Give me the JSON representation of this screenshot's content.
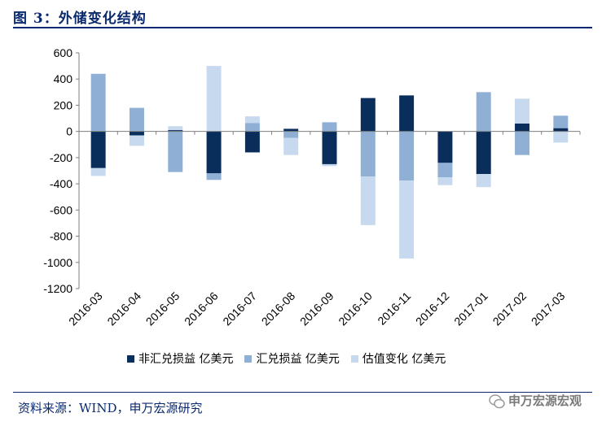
{
  "title": "图 3：外储变化结构",
  "source": "资料来源：WIND，申万宏源研究",
  "brand": "申万宏源宏观",
  "colors": {
    "series1": "#0a2e5c",
    "series2": "#8fb0d4",
    "series3": "#c6d9ee",
    "title": "#0b2a6e"
  },
  "chart_data": {
    "type": "bar",
    "stacked": true,
    "categories": [
      "2016-03",
      "2016-04",
      "2016-05",
      "2016-06",
      "2016-07",
      "2016-08",
      "2016-09",
      "2016-10",
      "2016-11",
      "2016-12",
      "2017-01",
      "2017-02",
      "2017-03"
    ],
    "series": [
      {
        "name": "非汇兑损益 亿美元",
        "values": [
          -280,
          -30,
          10,
          -320,
          -160,
          20,
          -250,
          255,
          275,
          -240,
          -325,
          60,
          25
        ]
      },
      {
        "name": "汇兑损益 亿美元",
        "values": [
          440,
          180,
          -310,
          -50,
          65,
          -50,
          70,
          -345,
          -375,
          -110,
          300,
          -180,
          95
        ]
      },
      {
        "name": "估值变化 亿美元",
        "values": [
          -60,
          -80,
          30,
          500,
          50,
          -130,
          -15,
          -370,
          -595,
          -60,
          -100,
          190,
          -85
        ]
      }
    ],
    "ylim": [
      -1200,
      600
    ],
    "yticks": [
      600,
      400,
      200,
      0,
      -200,
      -400,
      -600,
      -800,
      -1000,
      -1200
    ],
    "xlabel": "",
    "ylabel": "",
    "legend": "bottom"
  }
}
